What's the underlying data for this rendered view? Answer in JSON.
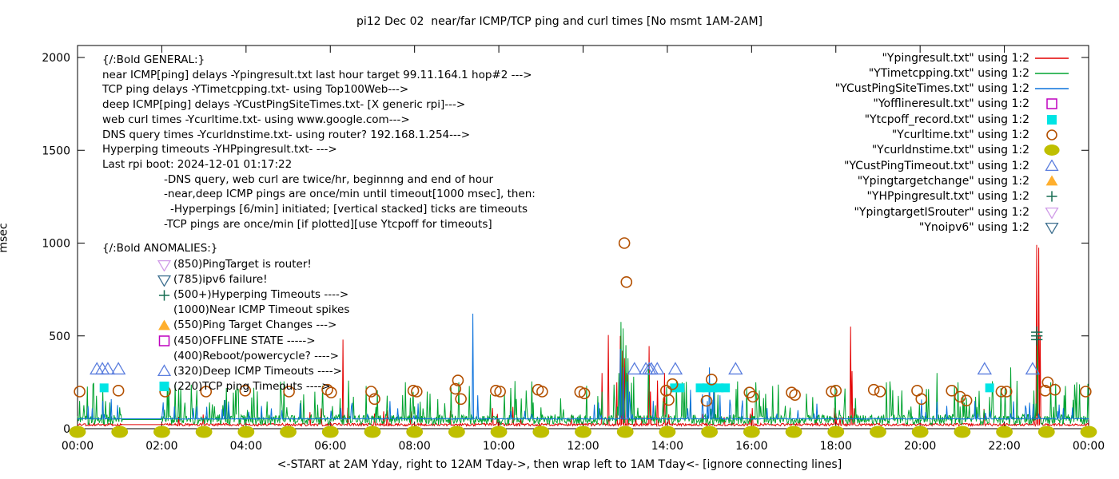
{
  "title": "pi12 Dec 02  near/far ICMP/TCP ping and curl times [No msmt 1AM-2AM]",
  "y_axis": {
    "label": "msec",
    "ticks": [
      0,
      500,
      1000,
      1500,
      2000
    ],
    "range": [
      0,
      2000
    ]
  },
  "x_axis": {
    "tick_labels": [
      "00:00",
      "02:00",
      "04:00",
      "06:00",
      "08:00",
      "10:00",
      "12:00",
      "14:00",
      "16:00",
      "18:00",
      "20:00",
      "22:00",
      "00:00"
    ],
    "caption": "<-START at 2AM Yday, right to 12AM Tday->, then wrap left to 1AM Tday<- [ignore connecting lines]"
  },
  "legend": {
    "items": [
      {
        "label": "\"Ypingresult.txt\" using 1:2",
        "marker": "line",
        "color": "#e30000"
      },
      {
        "label": "\"YTimetcpping.txt\" using 1:2",
        "marker": "line",
        "color": "#00a330"
      },
      {
        "label": "\"YCustPingSiteTimes.txt\" using 1:2",
        "marker": "line",
        "color": "#0c72dc"
      },
      {
        "label": "\"Yofflineresult.txt\" using 1:2",
        "marker": "square-open",
        "color": "#bf00bf"
      },
      {
        "label": "\"Ytcpoff_record.txt\" using 1:2",
        "marker": "square-filled",
        "color": "#00e4e4"
      },
      {
        "label": "\"Ycurltime.txt\" using 1:2",
        "marker": "circle-open",
        "color": "#b35000"
      },
      {
        "label": "\"Ycurldnstime.txt\" using 1:2",
        "marker": "circle-filled",
        "color": "#bfbf00"
      },
      {
        "label": "\"YCustPingTimeout.txt\" using 1:2",
        "marker": "triangle-up-open",
        "color": "#5b7ede"
      },
      {
        "label": "\"Ypingtargetchange\" using 1:2",
        "marker": "triangle-up-filled",
        "color": "#ffaf2e"
      },
      {
        "label": "\"YHPpingresult.txt\" using 1:2",
        "marker": "plus",
        "color": "#176e52"
      },
      {
        "label": "\"YpingtargetISrouter\" using 1:2",
        "marker": "triangle-down-open",
        "color": "#d09ce8"
      },
      {
        "label": "\"Ynoipv6\" using 1:2",
        "marker": "triangle-down-open",
        "color": "#3d6f8f"
      }
    ]
  },
  "notes_general": {
    "lines": [
      {
        "indent": 0,
        "text": "{/:Bold GENERAL:}"
      },
      {
        "indent": 0,
        "text": "near ICMP[ping] delays -Ypingresult.txt last hour target 99.11.164.1 hop#2 --->"
      },
      {
        "indent": 0,
        "text": "TCP ping delays -YTimetcpping.txt- using Top100Web--->"
      },
      {
        "indent": 0,
        "text": "deep ICMP[ping] delays -YCustPingSiteTimes.txt- [X generic rpi]--->"
      },
      {
        "indent": 0,
        "text": "web curl times -Ycurltime.txt- using www.google.com--->"
      },
      {
        "indent": 0,
        "text": "DNS query times -Ycurldnstime.txt- using router? 192.168.1.254--->"
      },
      {
        "indent": 0,
        "text": "Hyperping timeouts -YHPpingresult.txt- --->"
      },
      {
        "indent": 0,
        "text": "Last rpi boot: 2024-12-01 01:17:22"
      },
      {
        "indent": 1,
        "text": "-DNS query, web curl are twice/hr, beginnng and end of hour"
      },
      {
        "indent": 1,
        "text": "-near,deep ICMP pings are once/min until timeout[1000 msec], then:"
      },
      {
        "indent": 2,
        "text": "-Hyperpings [6/min] initiated; [vertical stacked] ticks are timeouts"
      },
      {
        "indent": 1,
        "text": "-TCP pings are once/min [if plotted][use Ytcpoff for timeouts]"
      }
    ]
  },
  "notes_anomalies": {
    "heading": "{/:Bold ANOMALIES:}",
    "items": [
      {
        "marker": "triangle-down-open",
        "color": "#d09ce8",
        "text": "(850)PingTarget is router!"
      },
      {
        "marker": "triangle-down-open",
        "color": "#3d6f8f",
        "text": "(785)ipv6 failure!"
      },
      {
        "marker": "plus",
        "color": "#176e52",
        "text": "(500+)Hyperping Timeouts ---->"
      },
      {
        "marker": "none",
        "color": "",
        "text": "(1000)Near ICMP Timeout spikes"
      },
      {
        "marker": "triangle-up-filled",
        "color": "#ffaf2e",
        "text": "(550)Ping Target Changes --->"
      },
      {
        "marker": "square-open",
        "color": "#bf00bf",
        "text": "(450)OFFLINE STATE ----->"
      },
      {
        "marker": "none",
        "color": "",
        "text": "(400)Reboot/powercycle? ---->"
      },
      {
        "marker": "triangle-up-open",
        "color": "#5b7ede",
        "text": "(320)Deep ICMP Timeouts ---->"
      },
      {
        "marker": "square-filled",
        "color": "#00e4e4",
        "text": "(220)TCP ping Timeouts ---->"
      }
    ]
  },
  "chart_data": {
    "type": "line",
    "x_unit": "time of day, hours 0-24",
    "y_unit": "msec",
    "ylim": [
      0,
      2000
    ],
    "no_measurement_gap_hours": [
      1.05,
      2.0
    ],
    "series": [
      {
        "name": "Ypingresult.txt near ICMP ping",
        "color": "#e30000",
        "base": 15,
        "jitter": 14,
        "spike_chance": 0.025,
        "spike_min": 50,
        "spike_max": 130,
        "seed": 11,
        "spikes": [
          [
            6.3,
            480
          ],
          [
            12.45,
            300
          ],
          [
            12.6,
            505
          ],
          [
            12.8,
            250
          ],
          [
            12.88,
            500
          ],
          [
            12.93,
            420
          ],
          [
            12.99,
            380
          ],
          [
            13.05,
            300
          ],
          [
            13.57,
            445
          ],
          [
            13.6,
            200
          ],
          [
            13.76,
            260
          ],
          [
            13.93,
            300
          ],
          [
            18.35,
            550
          ],
          [
            18.38,
            310
          ],
          [
            22.76,
            990
          ],
          [
            22.82,
            975
          ],
          [
            22.85,
            505
          ]
        ]
      },
      {
        "name": "YTimetcpping.txt TCP ping",
        "color": "#00a330",
        "base": 22,
        "jitter": 55,
        "spike_chance": 0.12,
        "spike_min": 100,
        "spike_max": 260,
        "seed": 23,
        "spikes": [
          [
            0.05,
            150
          ],
          [
            2.55,
            140
          ],
          [
            5.7,
            130
          ],
          [
            6.85,
            230
          ],
          [
            8.3,
            200
          ],
          [
            9.05,
            250
          ],
          [
            9.3,
            230
          ],
          [
            12.85,
            300
          ],
          [
            12.9,
            575
          ],
          [
            12.95,
            540
          ],
          [
            13.02,
            450
          ],
          [
            13.07,
            380
          ],
          [
            13.2,
            280
          ],
          [
            13.55,
            350
          ],
          [
            14.35,
            250
          ],
          [
            16.1,
            250
          ],
          [
            16.5,
            230
          ],
          [
            19.2,
            250
          ],
          [
            20.4,
            300
          ],
          [
            20.9,
            250
          ],
          [
            22.15,
            330
          ],
          [
            22.78,
            500
          ],
          [
            23.1,
            250
          ],
          [
            23.45,
            230
          ]
        ]
      },
      {
        "name": "YCustPingSiteTimes.txt deep ICMP ping",
        "color": "#0c72dc",
        "base": 51,
        "jitter": 5,
        "spike_chance": 0.035,
        "spike_min": 70,
        "spike_max": 160,
        "seed": 37,
        "spikes": [
          [
            0.35,
            110
          ],
          [
            0.6,
            150
          ],
          [
            2.3,
            120
          ],
          [
            6.5,
            120
          ],
          [
            7.6,
            110
          ],
          [
            9.38,
            620
          ],
          [
            9.5,
            180
          ],
          [
            12.88,
            430
          ],
          [
            12.95,
            330
          ],
          [
            13.05,
            255
          ],
          [
            13.1,
            200
          ],
          [
            14.55,
            210
          ],
          [
            14.83,
            185
          ],
          [
            15.0,
            330
          ],
          [
            15.1,
            245
          ],
          [
            15.25,
            180
          ],
          [
            15.5,
            125
          ],
          [
            17.1,
            100
          ],
          [
            21.3,
            150
          ],
          [
            22.6,
            140
          ],
          [
            23.3,
            130
          ]
        ]
      }
    ],
    "markers": {
      "curl_times_circles": {
        "color": "#b35000",
        "points": [
          [
            0.05,
            200
          ],
          [
            0.97,
            205
          ],
          [
            2.08,
            200
          ],
          [
            3.05,
            200
          ],
          [
            3.98,
            205
          ],
          [
            5.02,
            200
          ],
          [
            5.93,
            210
          ],
          [
            6.02,
            195
          ],
          [
            6.97,
            200
          ],
          [
            7.05,
            160
          ],
          [
            7.97,
            205
          ],
          [
            8.05,
            200
          ],
          [
            8.97,
            215
          ],
          [
            9.03,
            260
          ],
          [
            9.1,
            160
          ],
          [
            9.93,
            205
          ],
          [
            10.03,
            200
          ],
          [
            10.93,
            210
          ],
          [
            11.03,
            200
          ],
          [
            11.93,
            198
          ],
          [
            12.03,
            190
          ],
          [
            12.98,
            1000
          ],
          [
            13.03,
            790
          ],
          [
            13.97,
            205
          ],
          [
            14.03,
            155
          ],
          [
            14.12,
            240
          ],
          [
            14.93,
            150
          ],
          [
            15.05,
            265
          ],
          [
            15.95,
            195
          ],
          [
            16.03,
            172
          ],
          [
            16.95,
            195
          ],
          [
            17.03,
            182
          ],
          [
            17.9,
            200
          ],
          [
            18.0,
            205
          ],
          [
            18.9,
            210
          ],
          [
            19.05,
            200
          ],
          [
            19.93,
            205
          ],
          [
            20.03,
            160
          ],
          [
            20.75,
            205
          ],
          [
            20.95,
            172
          ],
          [
            21.1,
            152
          ],
          [
            21.93,
            200
          ],
          [
            22.05,
            200
          ],
          [
            22.97,
            205
          ],
          [
            23.03,
            250
          ],
          [
            23.2,
            210
          ],
          [
            23.93,
            200
          ]
        ]
      },
      "dns_times_circles": {
        "color": "#bfbf00",
        "value": 0,
        "hours": [
          0,
          1,
          2,
          3,
          4,
          5,
          6,
          7,
          8,
          9,
          10,
          11,
          12,
          13,
          14,
          15,
          16,
          17,
          18,
          19,
          20,
          21,
          22,
          23,
          24
        ]
      },
      "tcp_timeout_squares": {
        "color": "#00e4e4",
        "value": 220,
        "hours": [
          0.63,
          14.17,
          14.3,
          14.78,
          14.93,
          15.08,
          15.23,
          15.38,
          21.65
        ]
      },
      "deep_icmp_timeout_triangles": {
        "color": "#5b7ede",
        "value": 320,
        "hours": [
          0.46,
          0.59,
          0.72,
          0.97,
          13.22,
          13.49,
          13.57,
          13.62,
          13.76,
          14.19,
          15.62,
          21.53,
          22.67
        ]
      },
      "hyperping_timeout_pluses": {
        "color": "#176e52",
        "points": [
          [
            22.77,
            480
          ],
          [
            22.77,
            500
          ],
          [
            22.77,
            520
          ]
        ]
      }
    }
  }
}
